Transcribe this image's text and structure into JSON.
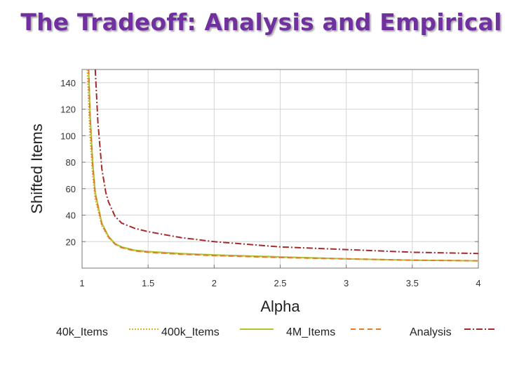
{
  "slide": {
    "title": "The Tradeoff: Analysis and Empirical"
  },
  "chart_data": {
    "type": "line",
    "xlabel": "Alpha",
    "ylabel": "Shifted Items",
    "xlim": [
      1,
      4
    ],
    "ylim": [
      0,
      150
    ],
    "xticks": [
      1,
      1.5,
      2,
      2.5,
      3,
      3.5,
      4
    ],
    "xtick_labels": [
      "1",
      "1.5",
      "2",
      "2.5",
      "3",
      "3.5",
      "4"
    ],
    "yticks": [
      20,
      40,
      60,
      80,
      100,
      120,
      140
    ],
    "ytick_labels": [
      "20",
      "40",
      "60",
      "80",
      "100",
      "120",
      "140"
    ],
    "grid": true,
    "legend": "bottom",
    "series": [
      {
        "name": "40k_Items",
        "color": "#e0b030",
        "dash": "dotted",
        "x": [
          1.04,
          1.06,
          1.08,
          1.1,
          1.15,
          1.2,
          1.25,
          1.3,
          1.4,
          1.5,
          1.75,
          2,
          2.5,
          3,
          3.5,
          4
        ],
        "y": [
          150,
          100,
          70,
          52,
          32,
          23,
          18,
          15.5,
          13,
          12,
          10.5,
          9.5,
          8,
          7,
          6,
          5.5
        ]
      },
      {
        "name": "400k_Items",
        "color": "#a8c832",
        "dash": "solid",
        "x": [
          1.05,
          1.06,
          1.08,
          1.1,
          1.15,
          1.2,
          1.25,
          1.3,
          1.4,
          1.5,
          1.75,
          2,
          2.5,
          3,
          3.5,
          4
        ],
        "y": [
          150,
          118,
          80,
          57,
          34,
          24,
          18.5,
          16,
          13.5,
          12.5,
          11,
          10,
          8.5,
          7,
          6,
          5.5
        ]
      },
      {
        "name": "4M_Items",
        "color": "#e07a30",
        "dash": "dashed",
        "x": [
          1.05,
          1.06,
          1.08,
          1.1,
          1.15,
          1.2,
          1.25,
          1.3,
          1.4,
          1.5,
          1.75,
          2,
          2.5,
          3,
          3.5,
          4
        ],
        "y": [
          150,
          115,
          78,
          56,
          33,
          23.5,
          18,
          15.5,
          13,
          12,
          10.5,
          9.5,
          8,
          7,
          6,
          5.5
        ]
      },
      {
        "name": "Analysis",
        "color": "#a52a2a",
        "dash": "dashdot",
        "x": [
          1.1,
          1.12,
          1.15,
          1.18,
          1.2,
          1.25,
          1.3,
          1.4,
          1.5,
          1.75,
          2,
          2.5,
          3,
          3.5,
          4
        ],
        "y": [
          150,
          110,
          75,
          57,
          50,
          39,
          34,
          30,
          27.5,
          23,
          20,
          16,
          14,
          12,
          11
        ]
      }
    ]
  }
}
